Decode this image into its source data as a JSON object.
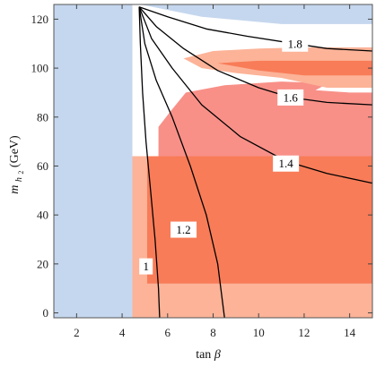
{
  "chart_data": {
    "type": "contour",
    "xlabel_main": "tan",
    "xlabel_greek": "β",
    "ylabel_main": "m",
    "ylabel_sub1": "h",
    "ylabel_sub2": "2",
    "ylabel_unit": "(GeV)",
    "xlim": [
      1,
      15
    ],
    "ylim": [
      -2,
      126
    ],
    "xticks": [
      2,
      4,
      6,
      8,
      10,
      12,
      14
    ],
    "yticks": [
      0,
      20,
      40,
      60,
      80,
      100,
      120
    ],
    "colors": {
      "excluded_blue": "#c5d7ee",
      "light_orange": "#fcb398",
      "dark_orange": "#f87c58",
      "pink": "#f89088",
      "contour": "#000000"
    },
    "regions": [
      {
        "fill": "light_orange",
        "points": [
          [
            4.45,
            64
          ],
          [
            15,
            64
          ],
          [
            15,
            -2
          ],
          [
            4.45,
            -2
          ]
        ]
      },
      {
        "fill": "dark_orange",
        "points": [
          [
            5.1,
            64
          ],
          [
            15,
            64
          ],
          [
            15,
            12
          ],
          [
            5.1,
            12
          ]
        ]
      },
      {
        "fill": "pink",
        "points": [
          [
            5.6,
            68
          ],
          [
            5.6,
            76
          ],
          [
            6.1,
            82
          ],
          [
            6.8,
            90
          ],
          [
            8.5,
            93
          ],
          [
            11,
            94.5
          ],
          [
            12.5,
            94
          ],
          [
            13,
            93.5
          ],
          [
            12.5,
            91
          ],
          [
            14,
            90
          ],
          [
            15,
            90
          ],
          [
            15,
            64
          ],
          [
            5.6,
            64
          ]
        ]
      },
      {
        "fill": "light_orange",
        "points": [
          [
            6.7,
            104
          ],
          [
            8,
            107
          ],
          [
            10,
            108
          ],
          [
            12,
            108.5
          ],
          [
            14,
            108.5
          ],
          [
            15,
            108.5
          ],
          [
            15,
            92
          ],
          [
            13,
            92
          ],
          [
            11,
            96
          ],
          [
            9,
            98
          ],
          [
            7.5,
            100
          ]
        ]
      },
      {
        "fill": "dark_orange",
        "points": [
          [
            8.2,
            102
          ],
          [
            10,
            103
          ],
          [
            12,
            103
          ],
          [
            15,
            103
          ],
          [
            15,
            97
          ],
          [
            12,
            97
          ],
          [
            10,
            99
          ]
        ]
      },
      {
        "fill": "excluded_blue",
        "points": [
          [
            1,
            126
          ],
          [
            4.45,
            126
          ],
          [
            4.45,
            -2
          ],
          [
            1,
            -2
          ]
        ]
      },
      {
        "fill": "excluded_blue",
        "points": [
          [
            4.8,
            126
          ],
          [
            15,
            126
          ],
          [
            15,
            118
          ],
          [
            11,
            118
          ],
          [
            7.5,
            121
          ]
        ]
      }
    ],
    "contours": [
      {
        "label": "1",
        "label_at": [
          5.05,
          19
        ],
        "points": [
          [
            4.75,
            125
          ],
          [
            4.8,
            110
          ],
          [
            4.9,
            90
          ],
          [
            5.05,
            70
          ],
          [
            5.25,
            50
          ],
          [
            5.45,
            30
          ],
          [
            5.6,
            10
          ],
          [
            5.65,
            -2
          ]
        ]
      },
      {
        "label": "1.2",
        "label_at": [
          6.7,
          34
        ],
        "points": [
          [
            4.75,
            125
          ],
          [
            5.0,
            110
          ],
          [
            5.5,
            95
          ],
          [
            6.2,
            80
          ],
          [
            7.0,
            60
          ],
          [
            7.7,
            40
          ],
          [
            8.2,
            20
          ],
          [
            8.5,
            -2
          ]
        ]
      },
      {
        "label": "1.4",
        "label_at": [
          11.2,
          61
        ],
        "points": [
          [
            4.75,
            125
          ],
          [
            5.3,
            112
          ],
          [
            6.2,
            100
          ],
          [
            7.5,
            85
          ],
          [
            9.2,
            72
          ],
          [
            11.2,
            62
          ],
          [
            13,
            57
          ],
          [
            15,
            53
          ]
        ]
      },
      {
        "label": "1.6",
        "label_at": [
          11.4,
          88
        ],
        "points": [
          [
            4.75,
            125
          ],
          [
            5.5,
            117
          ],
          [
            6.7,
            108
          ],
          [
            8.2,
            99
          ],
          [
            10,
            92
          ],
          [
            11.4,
            88
          ],
          [
            13,
            86
          ],
          [
            15,
            85
          ]
        ]
      },
      {
        "label": "1.8",
        "label_at": [
          11.6,
          110
        ],
        "points": [
          [
            4.75,
            125
          ],
          [
            6,
            121
          ],
          [
            7.7,
            116
          ],
          [
            9.5,
            113
          ],
          [
            11.6,
            110
          ],
          [
            13,
            108
          ],
          [
            15,
            107
          ]
        ]
      }
    ]
  }
}
